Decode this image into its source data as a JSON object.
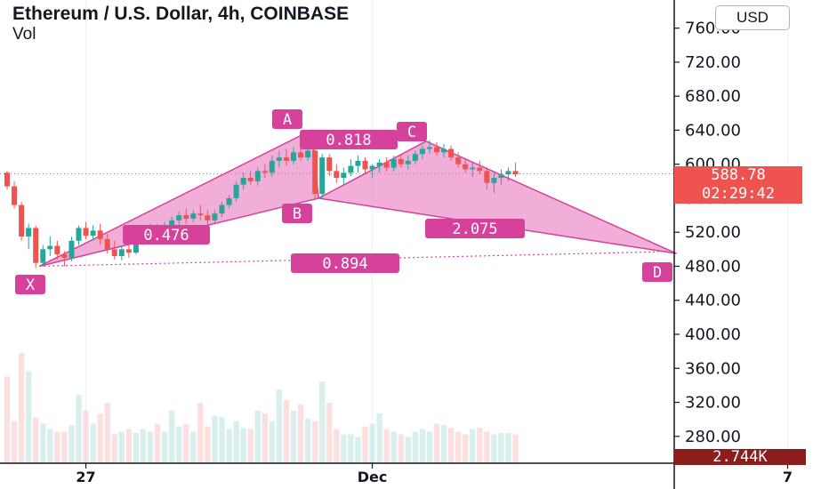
{
  "chart_data": {
    "type": "candlestick",
    "title": "Ethereum / U.S. Dollar, 4h, COINBASE",
    "volume_label": "Vol",
    "currency": "USD",
    "y_ticks": [
      280,
      320,
      360,
      400,
      440,
      480,
      520,
      560,
      600,
      640,
      680,
      720,
      760
    ],
    "y_tick_labels": [
      "280.00",
      "320.00",
      "360.00",
      "400.00",
      "440.00",
      "480.00",
      "520.00",
      "560.00",
      "600.00",
      "640.00",
      "680.00",
      "720.00",
      "760.00"
    ],
    "ylim": [
      262,
      772
    ],
    "x_ticks": [
      {
        "bar": 11,
        "label": "27"
      },
      {
        "bar": 51,
        "label": "Dec"
      },
      {
        "bar": 109,
        "label": "7"
      }
    ],
    "last_price": 588.78,
    "last_price_label": "588.78",
    "countdown_label": "02:29:42",
    "volume_value_label": "2.744K",
    "colors": {
      "up": "#26a69a",
      "down": "#ef5350",
      "pattern": "#d5419b",
      "pattern_fill": "#e36bb9",
      "axis_text": "#131722"
    },
    "candles": [
      [
        590,
        592,
        570,
        574
      ],
      [
        574,
        580,
        548,
        552
      ],
      [
        552,
        556,
        510,
        515
      ],
      [
        515,
        530,
        500,
        525
      ],
      [
        525,
        528,
        478,
        484
      ],
      [
        484,
        505,
        480,
        500
      ],
      [
        500,
        515,
        492,
        504
      ],
      [
        504,
        510,
        488,
        494
      ],
      [
        494,
        498,
        480,
        490
      ],
      [
        490,
        515,
        486,
        510
      ],
      [
        510,
        528,
        505,
        525
      ],
      [
        525,
        532,
        512,
        516
      ],
      [
        516,
        528,
        510,
        522
      ],
      [
        522,
        530,
        505,
        512
      ],
      [
        512,
        518,
        495,
        500
      ],
      [
        500,
        510,
        488,
        492
      ],
      [
        492,
        504,
        487,
        500
      ],
      [
        500,
        508,
        490,
        496
      ],
      [
        496,
        515,
        494,
        510
      ],
      [
        510,
        526,
        505,
        518
      ],
      [
        518,
        530,
        512,
        524
      ],
      [
        524,
        530,
        512,
        518
      ],
      [
        518,
        532,
        515,
        528
      ],
      [
        528,
        538,
        522,
        534
      ],
      [
        534,
        544,
        528,
        540
      ],
      [
        540,
        548,
        530,
        536
      ],
      [
        536,
        546,
        532,
        542
      ],
      [
        542,
        552,
        534,
        540
      ],
      [
        540,
        546,
        528,
        534
      ],
      [
        534,
        546,
        530,
        542
      ],
      [
        542,
        556,
        538,
        552
      ],
      [
        552,
        564,
        548,
        560
      ],
      [
        560,
        580,
        556,
        576
      ],
      [
        576,
        590,
        570,
        584
      ],
      [
        584,
        592,
        576,
        580
      ],
      [
        580,
        596,
        575,
        592
      ],
      [
        592,
        600,
        584,
        590
      ],
      [
        590,
        610,
        585,
        604
      ],
      [
        604,
        616,
        596,
        608
      ],
      [
        608,
        618,
        598,
        604
      ],
      [
        604,
        620,
        600,
        614
      ],
      [
        614,
        622,
        604,
        608
      ],
      [
        608,
        640,
        604,
        616
      ],
      [
        616,
        620,
        558,
        565
      ],
      [
        565,
        612,
        560,
        608
      ],
      [
        608,
        612,
        586,
        592
      ],
      [
        592,
        600,
        578,
        584
      ],
      [
        584,
        596,
        576,
        590
      ],
      [
        590,
        606,
        586,
        598
      ],
      [
        598,
        610,
        590,
        604
      ],
      [
        604,
        608,
        588,
        594
      ],
      [
        594,
        600,
        584,
        598
      ],
      [
        598,
        606,
        590,
        602
      ],
      [
        602,
        608,
        592,
        596
      ],
      [
        596,
        610,
        592,
        606
      ],
      [
        606,
        612,
        596,
        600
      ],
      [
        600,
        610,
        594,
        604
      ],
      [
        604,
        616,
        600,
        612
      ],
      [
        612,
        622,
        606,
        618
      ],
      [
        618,
        628,
        612,
        620
      ],
      [
        620,
        626,
        610,
        614
      ],
      [
        614,
        624,
        608,
        618
      ],
      [
        618,
        622,
        604,
        608
      ],
      [
        608,
        614,
        596,
        600
      ],
      [
        600,
        606,
        590,
        594
      ],
      [
        594,
        602,
        585,
        596
      ],
      [
        596,
        604,
        588,
        592
      ],
      [
        592,
        596,
        570,
        578
      ],
      [
        578,
        590,
        566,
        584
      ],
      [
        584,
        594,
        576,
        588
      ],
      [
        588,
        596,
        580,
        592
      ],
      [
        592,
        602,
        585,
        588
      ]
    ],
    "volumes": [
      330,
      160,
      420,
      350,
      175,
      150,
      130,
      120,
      120,
      145,
      260,
      200,
      150,
      190,
      230,
      110,
      120,
      130,
      115,
      130,
      120,
      150,
      120,
      200,
      140,
      150,
      120,
      230,
      140,
      180,
      175,
      130,
      160,
      135,
      130,
      200,
      190,
      160,
      280,
      240,
      200,
      225,
      170,
      160,
      310,
      230,
      130,
      110,
      110,
      100,
      140,
      150,
      190,
      130,
      120,
      110,
      100,
      120,
      130,
      120,
      150,
      145,
      135,
      120,
      110,
      130,
      135,
      120,
      110,
      115,
      115,
      110
    ],
    "pattern": {
      "points": [
        {
          "name": "X",
          "bar": 4.5,
          "price": 480
        },
        {
          "name": "A",
          "bar": 42.5,
          "price": 640
        },
        {
          "name": "B",
          "bar": 43.5,
          "price": 560
        },
        {
          "name": "C",
          "bar": 58.5,
          "price": 627
        },
        {
          "name": "D",
          "bar": 93.5,
          "price": 495
        }
      ],
      "ratios": [
        {
          "label": "0.476"
        },
        {
          "label": "0.818"
        },
        {
          "label": "2.075"
        },
        {
          "label": "0.894"
        }
      ]
    }
  }
}
